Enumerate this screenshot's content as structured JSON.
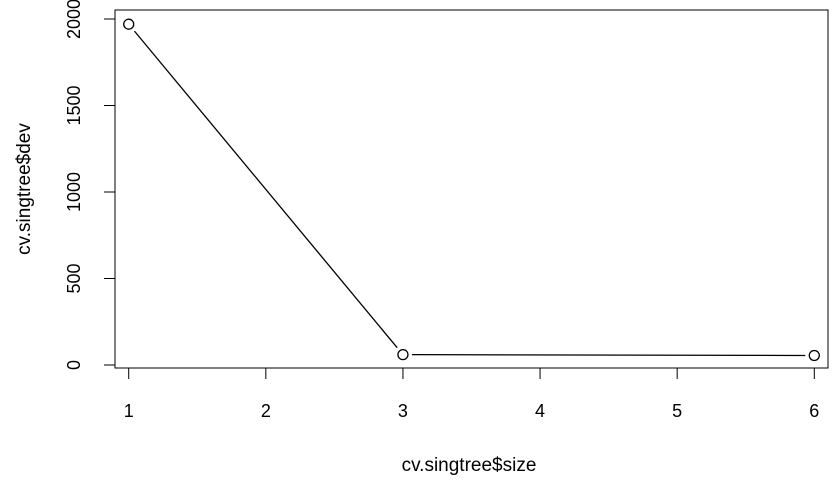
{
  "chart_data": {
    "type": "line",
    "title": "",
    "xlabel": "cv.singtree$size",
    "ylabel": "cv.singtree$dev",
    "x": [
      1,
      3,
      6
    ],
    "series": [
      {
        "values": [
          1970,
          60,
          55
        ]
      }
    ],
    "xlim": [
      0.9,
      6.1
    ],
    "ylim": [
      0,
      2000
    ],
    "x_ticks": [
      "1",
      "2",
      "3",
      "4",
      "5",
      "6"
    ],
    "y_ticks": [
      "0",
      "500",
      "1000",
      "1500",
      "2000"
    ],
    "y_tick_values": [
      0,
      500,
      1000,
      1500,
      2000
    ],
    "x_tick_values": [
      1,
      2,
      3,
      4,
      5,
      6
    ],
    "markers": "open-circle",
    "grid": false,
    "legend": "none"
  }
}
